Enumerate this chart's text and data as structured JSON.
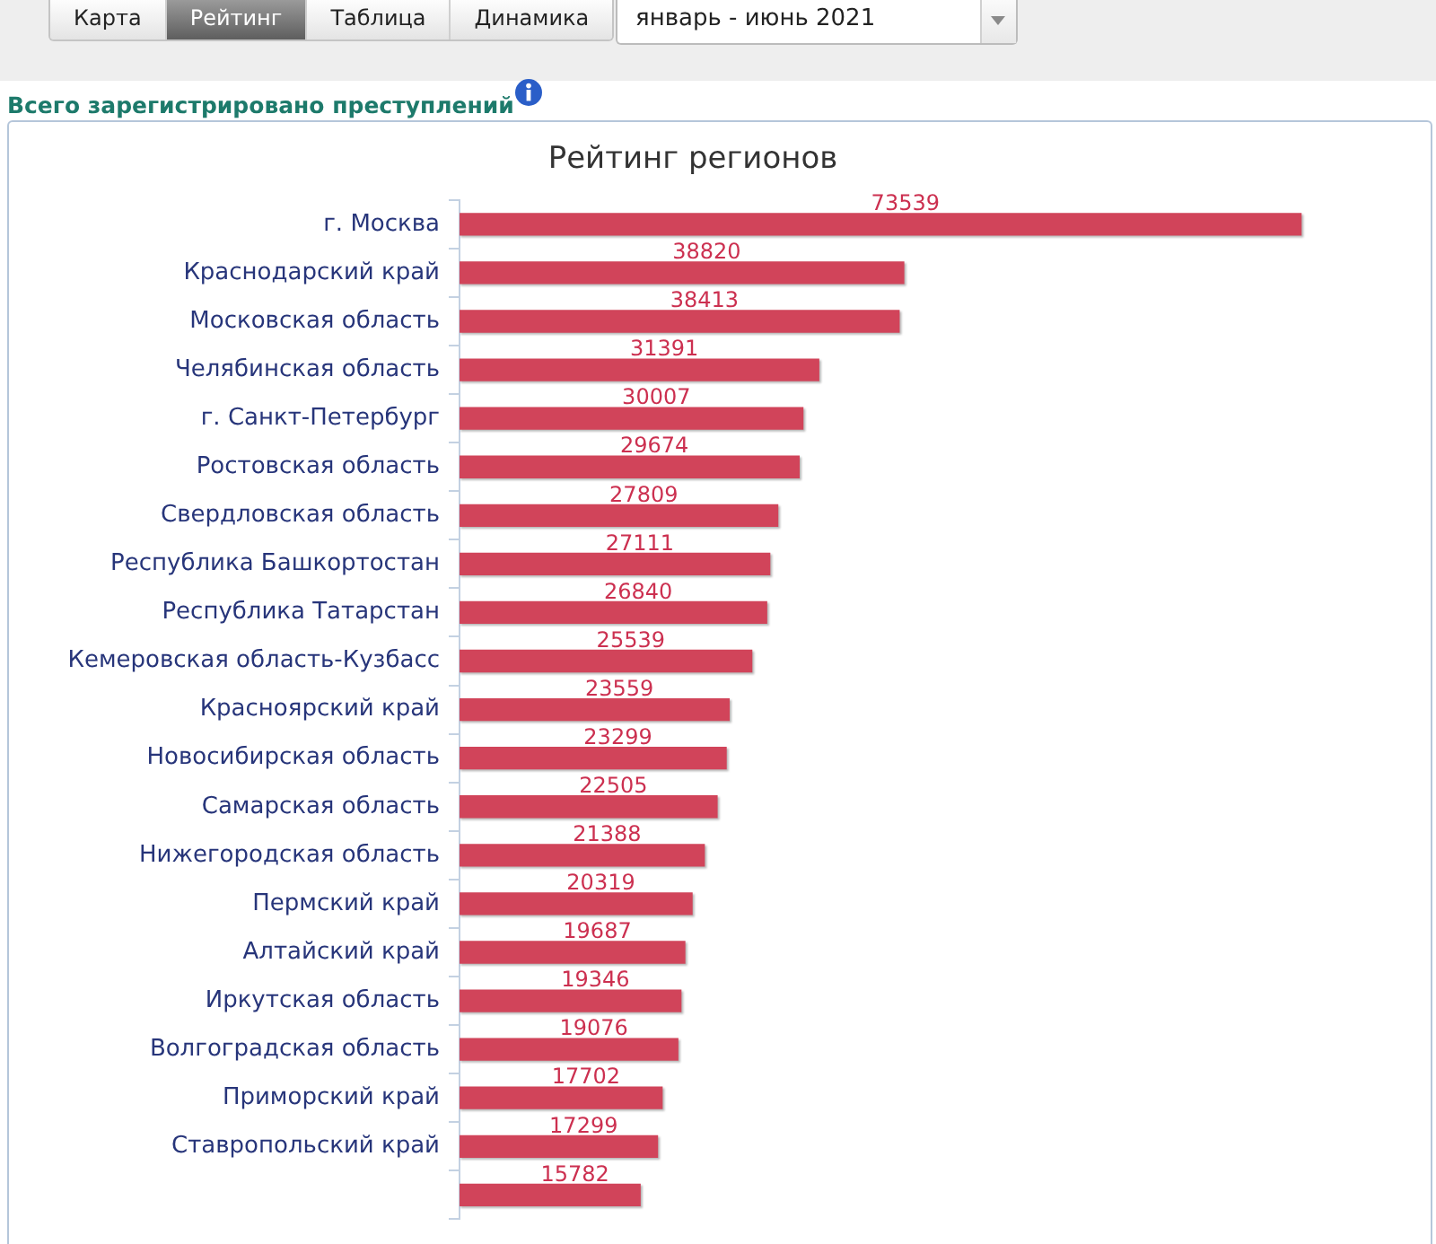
{
  "chart_data": {
    "type": "bar",
    "orientation": "horizontal",
    "title": "Рейтинг регионов",
    "subtitle": "Всего зарегистрировано преступлений",
    "annotations": [
      "Карта",
      "Рейтинг",
      "Таблица",
      "Динамика",
      "январь - июнь 2021"
    ],
    "categories": [
      "г. Москва",
      "Краснодарский край",
      "Московская область",
      "Челябинская область",
      "г. Санкт-Петербург",
      "Ростовская область",
      "Свердловская область",
      "Республика Башкортостан",
      "Республика Татарстан",
      "Кемеровская область-Кузбасс",
      "Красноярский край",
      "Новосибирская область",
      "Самарская область",
      "Нижегородская область",
      "Пермский край",
      "Алтайский край",
      "Иркутская область",
      "Волгоградская область",
      "Приморский край",
      "Ставропольский край",
      null
    ],
    "values": [
      73539,
      38820,
      38413,
      31391,
      30007,
      29674,
      27809,
      27111,
      26840,
      25539,
      23559,
      23299,
      22505,
      21388,
      20319,
      19687,
      19346,
      19076,
      17702,
      17299,
      15782
    ],
    "color": "#d1445a",
    "data_labels": true,
    "tick_labels": "y"
  }
}
